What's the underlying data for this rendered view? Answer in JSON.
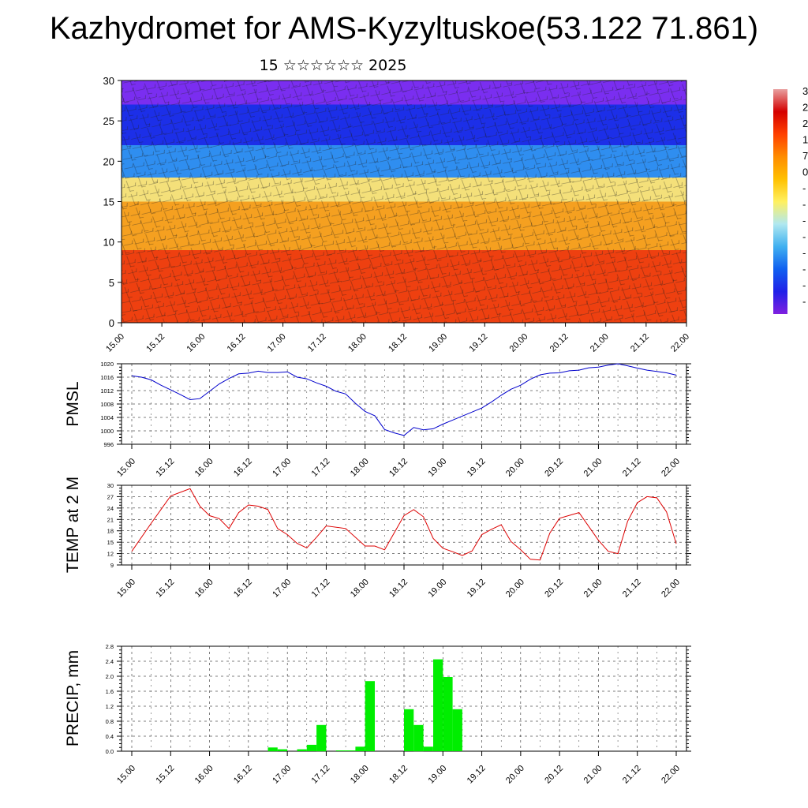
{
  "title": "Kazhydromet for AMS-Kyzyltuskoe(53.122 71.861)",
  "subtitle": "15 ☆☆☆☆☆☆ 2025",
  "time_labels": [
    "15.00",
    "15.12",
    "16.00",
    "16.12",
    "17.00",
    "17.12",
    "18.00",
    "18.12",
    "19.00",
    "19.12",
    "20.00",
    "20.12",
    "21.00",
    "21.12",
    "22.00"
  ],
  "colorbar": {
    "visible_labels": [
      "3",
      "2",
      "2",
      "1",
      "7",
      "0",
      "-",
      "-",
      "-",
      "-",
      "-",
      "-",
      "-",
      "-"
    ],
    "colors": [
      "#e8a0a0",
      "#d40000",
      "#ff4000",
      "#ff8c00",
      "#ffc000",
      "#fff060",
      "#b0e8f0",
      "#40b0f0",
      "#1060f0",
      "#2020e8",
      "#8020e0"
    ]
  },
  "chart_data": [
    {
      "type": "heatmap",
      "name": "cross-section",
      "ylim": [
        0,
        30
      ],
      "yticks": [
        0,
        5,
        10,
        15,
        20,
        25,
        30
      ],
      "x_labels": [
        "15.00",
        "15.12",
        "16.00",
        "16.12",
        "17.00",
        "17.12",
        "18.00",
        "18.12",
        "19.00",
        "19.12",
        "20.00",
        "20.12",
        "21.00",
        "21.12",
        "22.00"
      ],
      "bands_top_to_bottom": [
        {
          "from": 30,
          "to": 27,
          "color": "#7a2ef0"
        },
        {
          "from": 27,
          "to": 22,
          "color": "#1c2fe8"
        },
        {
          "from": 22,
          "to": 18,
          "color": "#2f8ef0"
        },
        {
          "from": 18,
          "to": 15,
          "color": "#f4e07a"
        },
        {
          "from": 15,
          "to": 9,
          "color": "#f5a020"
        },
        {
          "from": 9,
          "to": 0,
          "color": "#ee4010"
        }
      ],
      "overlay": "wind barbs"
    },
    {
      "type": "line",
      "ylabel": "PMSL",
      "ylim": [
        996,
        1020
      ],
      "yticks": [
        996,
        1000,
        1004,
        1008,
        1012,
        1016,
        1020
      ],
      "ytick_labels": [
        "996",
        "1000",
        "1004",
        "1008",
        "1012",
        "1016",
        "1020"
      ],
      "x_labels": [
        "15.00",
        "15.12",
        "16.00",
        "16.12",
        "17.00",
        "17.12",
        "18.00",
        "18.12",
        "19.00",
        "19.12",
        "20.00",
        "20.12",
        "21.00",
        "21.12",
        "22.00"
      ],
      "color": "#0000cc",
      "x": [
        0,
        3,
        6,
        9,
        12,
        15,
        18,
        21,
        24,
        27,
        30,
        33,
        36,
        39,
        42,
        45,
        48,
        51,
        54,
        57,
        60,
        63,
        66,
        69,
        72,
        75,
        78,
        81,
        84,
        87,
        90,
        93,
        96,
        99,
        102,
        105,
        108,
        111,
        114,
        117,
        120,
        123,
        126,
        129,
        132,
        135,
        138,
        141,
        144,
        147,
        150,
        153,
        156,
        159,
        162,
        165,
        168
      ],
      "values": [
        1016.4,
        1016,
        1015.2,
        1013.6,
        1012.2,
        1010.8,
        1009.3,
        1009.6,
        1011.8,
        1014,
        1015.6,
        1017,
        1017.2,
        1017.8,
        1017.4,
        1017.4,
        1017.6,
        1016,
        1015.5,
        1014.3,
        1013.3,
        1011.8,
        1011,
        1008.2,
        1005.8,
        1004.5,
        1000.4,
        999.4,
        998.6,
        1001,
        1000.3,
        1000.6,
        1002,
        1003.2,
        1004.4,
        1005.6,
        1006.8,
        1008.6,
        1010.6,
        1012.4,
        1013.6,
        1015.4,
        1016.7,
        1017.2,
        1017.3,
        1017.9,
        1018.1,
        1018.8,
        1019,
        1019.6,
        1020,
        1019.4,
        1018.7,
        1018.1,
        1017.7,
        1017.3,
        1016.6
      ]
    },
    {
      "type": "line",
      "ylabel": "TEMP at 2 M",
      "ylim": [
        9,
        30
      ],
      "yticks": [
        9,
        12,
        15,
        18,
        21,
        24,
        27,
        30
      ],
      "ytick_labels": [
        "9",
        "12",
        "15",
        "18",
        "21",
        "24",
        "27",
        "30"
      ],
      "x_labels": [
        "15.00",
        "15.12",
        "16.00",
        "16.12",
        "17.00",
        "17.12",
        "18.00",
        "18.12",
        "19.00",
        "19.12",
        "20.00",
        "20.12",
        "21.00",
        "21.12",
        "22.00"
      ],
      "color": "#dd0000",
      "x": [
        0,
        6,
        12,
        18,
        21,
        24,
        27,
        30,
        33,
        36,
        39,
        42,
        45,
        48,
        51,
        54,
        57,
        60,
        66,
        72,
        75,
        78,
        81,
        84,
        87,
        90,
        93,
        96,
        99,
        102,
        105,
        108,
        111,
        114,
        117,
        120,
        123,
        126,
        129,
        132,
        138,
        144,
        147,
        150,
        153,
        156,
        159,
        162,
        165,
        168
      ],
      "values": [
        12.6,
        20,
        27.2,
        29.1,
        24.5,
        22,
        21.2,
        18.6,
        22.8,
        24.8,
        24.5,
        23.6,
        18.6,
        17,
        14.7,
        13.5,
        16.3,
        19.3,
        18.6,
        14,
        14,
        13,
        17.5,
        22,
        23.6,
        21.7,
        16,
        13.4,
        12.5,
        11.5,
        12.7,
        17,
        18.4,
        19.6,
        15.2,
        13,
        10.5,
        10.3,
        17.4,
        21.3,
        22.8,
        15.5,
        12.6,
        12,
        20.5,
        25.4,
        27,
        26.7,
        23,
        14.6
      ]
    },
    {
      "type": "bar",
      "ylabel": "PRECIP, mm",
      "ylim": [
        0,
        2.8
      ],
      "yticks": [
        0,
        0.4,
        0.8,
        1.2,
        1.6,
        2.0,
        2.4,
        2.8
      ],
      "ytick_labels": [
        "0.0",
        "0.4",
        "0.8",
        "1.2",
        "1.6",
        "2.0",
        "2.4",
        "2.8"
      ],
      "x_labels": [
        "15.00",
        "15.12",
        "16.00",
        "16.12",
        "17.00",
        "17.12",
        "18.00",
        "18.12",
        "19.00",
        "19.12",
        "20.00",
        "20.12",
        "21.00",
        "21.12",
        "22.00"
      ],
      "color": "#00ee00",
      "bar_width_hours": 3,
      "bars": [
        {
          "start": 42,
          "value": 0.1
        },
        {
          "start": 45,
          "value": 0.05
        },
        {
          "start": 51,
          "value": 0.05
        },
        {
          "start": 54,
          "value": 0.17
        },
        {
          "start": 57,
          "value": 0.7
        },
        {
          "start": 63,
          "value": 0.02
        },
        {
          "start": 66,
          "value": 0.02
        },
        {
          "start": 69,
          "value": 0.12
        },
        {
          "start": 72,
          "value": 1.87
        },
        {
          "start": 84,
          "value": 1.12
        },
        {
          "start": 87,
          "value": 0.7
        },
        {
          "start": 90,
          "value": 0.12
        },
        {
          "start": 93,
          "value": 2.45
        },
        {
          "start": 96,
          "value": 1.98
        },
        {
          "start": 99,
          "value": 1.12
        }
      ]
    }
  ]
}
